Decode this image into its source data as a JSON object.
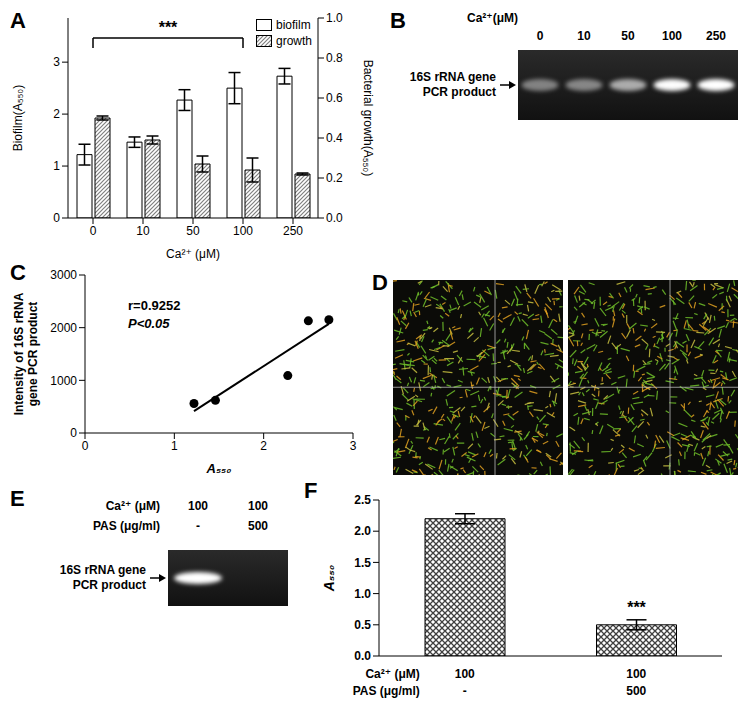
{
  "chart_data": [
    {
      "panel": "A",
      "type": "bar",
      "categories": [
        0,
        10,
        50,
        100,
        250
      ],
      "x_label": "Ca²⁺ (μM)",
      "y_label": "Biofilm(A₅₅₀)",
      "y2_label": "Bacterial growth(A₅₅₀)",
      "ylim": [
        0,
        3.85
      ],
      "yticks": [
        0,
        1,
        2,
        3
      ],
      "y2lim": [
        0,
        1
      ],
      "y2ticks": [
        {
          "value": 0,
          "label": "0.0"
        },
        0.2,
        0.4,
        0.6,
        0.8,
        {
          "value": 1,
          "label": "1.0"
        }
      ],
      "series": [
        {
          "name": "biofilm",
          "color": "#ffffff",
          "values": [
            1.22,
            1.46,
            2.27,
            2.5,
            2.73
          ],
          "errors": [
            0.2,
            0.1,
            0.2,
            0.3,
            0.15
          ]
        },
        {
          "name": "growth",
          "color": "#808080",
          "axis": "y2",
          "values": [
            0.5,
            0.39,
            0.27,
            0.24,
            0.22
          ],
          "errors": [
            0.01,
            0.02,
            0.04,
            0.06,
            0.005
          ]
        }
      ],
      "legend": "upper right",
      "annotations": [
        {
          "text": "***",
          "from": 0,
          "to": 100
        }
      ]
    },
    {
      "panel": "B",
      "type": "gel",
      "x_label": "Ca²⁺(μM)",
      "lanes": [
        0,
        10,
        50,
        100,
        250
      ],
      "band_label": "16S rRNA gene PCR product",
      "intensity": [
        560,
        620,
        1090,
        2130,
        2150
      ]
    },
    {
      "panel": "C",
      "type": "scatter",
      "x_label": "A₅₅₀",
      "y_label": "Intensity of 16S rRNA gene PCR product",
      "x": [
        1.22,
        1.46,
        2.27,
        2.5,
        2.73
      ],
      "values": [
        560,
        620,
        1090,
        2130,
        2150
      ],
      "xlim": [
        0,
        3
      ],
      "xticks": [
        0,
        1,
        2,
        3
      ],
      "ylim": [
        0,
        3000
      ],
      "yticks": [
        0,
        1000,
        2000,
        3000
      ],
      "annotations": [
        "r=0.9252",
        "P<0.05"
      ]
    },
    {
      "panel": "D",
      "type": "image"
    },
    {
      "panel": "E",
      "type": "gel",
      "rows": [
        {
          "label": "Ca²⁺ (μM)",
          "values": [
            100,
            100
          ]
        },
        {
          "label": "PAS (μg/ml)",
          "values": [
            "-",
            500
          ]
        }
      ],
      "band_label": "16S rRNA gene PCR product",
      "intensity": [
        2130,
        0
      ]
    },
    {
      "panel": "F",
      "type": "bar",
      "rows": [
        {
          "label": "Ca²⁺ (μM)",
          "values": [
            100,
            100
          ]
        },
        {
          "label": "PAS (μg/ml)",
          "values": [
            "-",
            500
          ]
        }
      ],
      "y_label": "A₅₅₀",
      "ylim": [
        0,
        2.5
      ],
      "yticks": [
        {
          "value": 0,
          "label": "0.0"
        },
        0.5,
        {
          "value": 1,
          "label": "1.0"
        },
        1.5,
        {
          "value": 2,
          "label": "2.0"
        },
        2.5
      ],
      "values": [
        2.2,
        0.5
      ],
      "errors": [
        0.08,
        0.08
      ],
      "color": "#404040",
      "annotations": [
        {
          "text": "***",
          "index": 1
        }
      ]
    }
  ]
}
